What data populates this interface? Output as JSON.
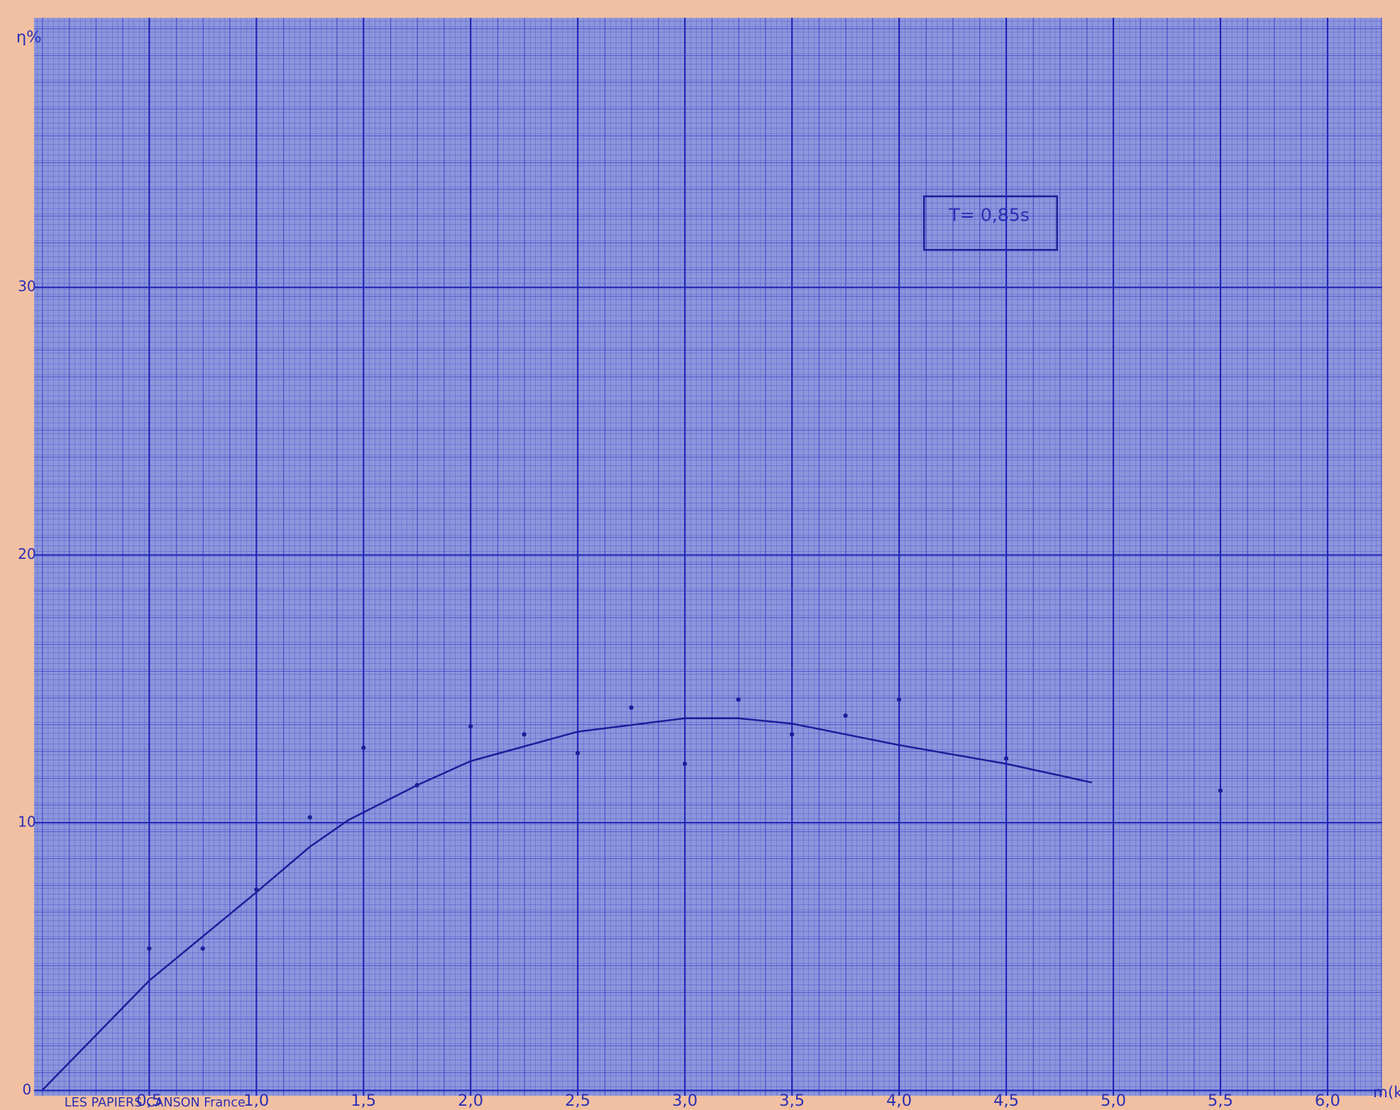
{
  "chart_data": {
    "type": "scatter",
    "x_label": "m(k",
    "y_label": "η%",
    "annotation": "T= 0,85s",
    "footer": "LES PAPIERS CANSON France",
    "xlim": [
      0,
      6.24
    ],
    "ylim": [
      0,
      40
    ],
    "xticks": [
      {
        "value": 0.5,
        "label": "0,5"
      },
      {
        "value": 1.0,
        "label": "1,0"
      },
      {
        "value": 1.5,
        "label": "1,5"
      },
      {
        "value": 2.0,
        "label": "2,0"
      },
      {
        "value": 2.5,
        "label": "2,5"
      },
      {
        "value": 3.0,
        "label": "3,0"
      },
      {
        "value": 3.5,
        "label": "3,5"
      },
      {
        "value": 4.0,
        "label": "4,0"
      },
      {
        "value": 4.5,
        "label": "4,5"
      },
      {
        "value": 5.0,
        "label": "5,0"
      },
      {
        "value": 5.5,
        "label": "5,5"
      },
      {
        "value": 6.0,
        "label": "6,0"
      }
    ],
    "yticks": [
      0,
      10,
      20,
      30
    ],
    "grid": true,
    "series": [
      {
        "mode": "markers",
        "color": "#1a1f9a",
        "x": [
          0.5,
          0.75,
          1.0,
          1.25,
          1.5,
          1.75,
          2.0,
          2.25,
          2.5,
          2.75,
          3.0,
          3.25,
          3.5,
          3.75,
          4.0,
          4.5,
          5.5
        ],
        "values": [
          5.3,
          5.3,
          7.5,
          10.2,
          12.8,
          11.4,
          13.6,
          13.3,
          12.6,
          14.3,
          12.2,
          14.6,
          13.3,
          14.0,
          14.6,
          12.4,
          11.2
        ]
      },
      {
        "mode": "line",
        "color": "#1a1f9a",
        "x": [
          0,
          0.5,
          1.0,
          1.25,
          1.43,
          1.75,
          2.0,
          2.5,
          3.0,
          3.25,
          3.5,
          4.0,
          4.5,
          4.9
        ],
        "values": [
          0,
          4.1,
          7.4,
          9.1,
          10.1,
          11.4,
          12.3,
          13.4,
          13.9,
          13.9,
          13.7,
          12.9,
          12.2,
          11.5
        ]
      }
    ]
  }
}
